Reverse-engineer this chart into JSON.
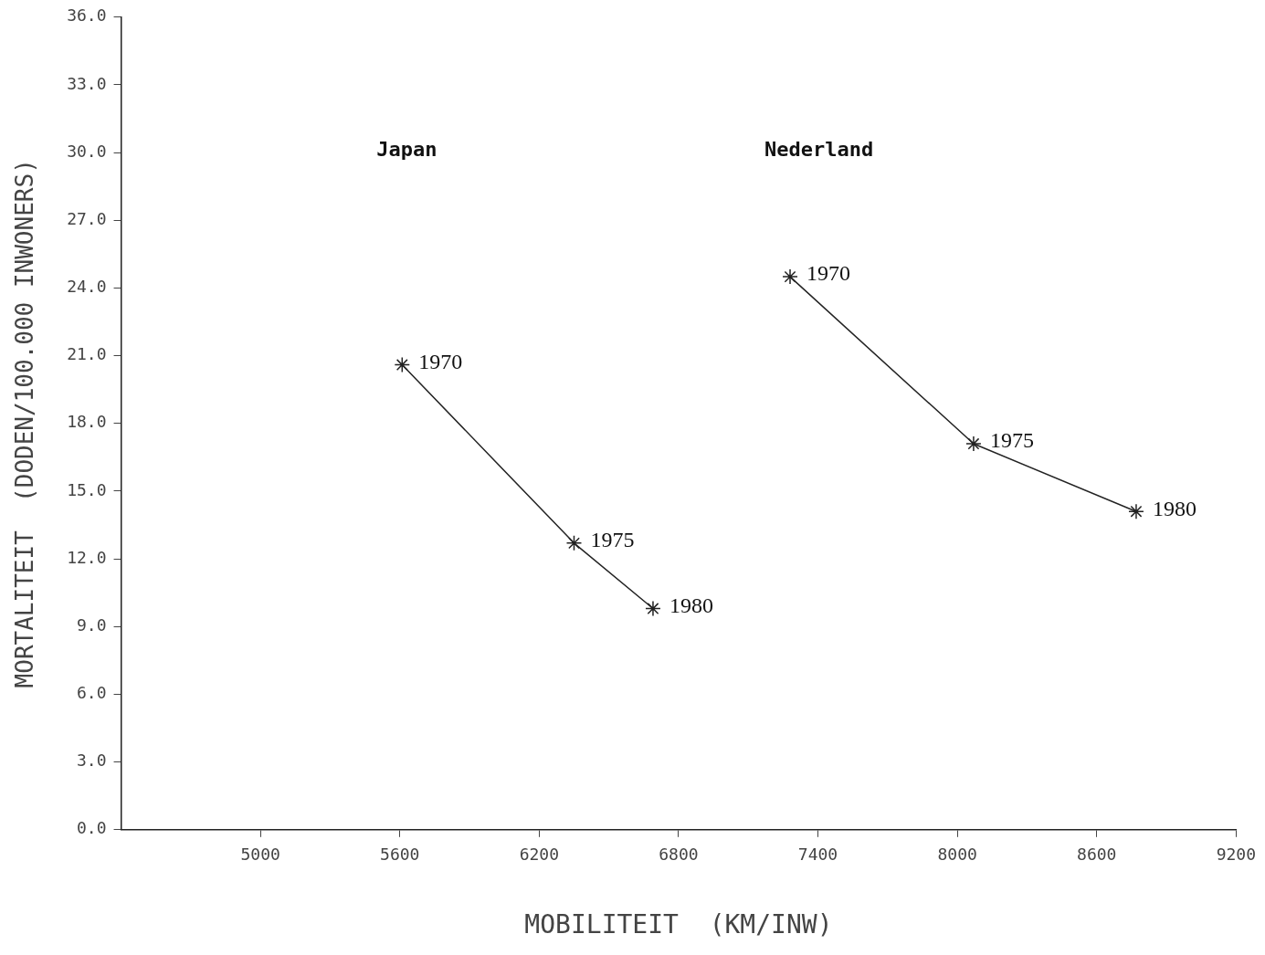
{
  "chart_data": {
    "type": "line",
    "xlabel": "MOBILITEIT  (KM/INW)",
    "ylabel": "MORTALITEIT  (DODEN/100.000 INWONERS)",
    "xlim": [
      4400,
      9200
    ],
    "xticks": [
      5000,
      5600,
      6200,
      6800,
      7400,
      8000,
      8600,
      9200
    ],
    "ylim": [
      0,
      36
    ],
    "yticks": [
      {
        "value": 0,
        "label": "0.0"
      },
      {
        "value": 3,
        "label": "3.0"
      },
      {
        "value": 6,
        "label": "6.0"
      },
      {
        "value": 9,
        "label": "9.0"
      },
      {
        "value": 12,
        "label": "12.0"
      },
      {
        "value": 15,
        "label": "15.0"
      },
      {
        "value": 18,
        "label": "18.0"
      },
      {
        "value": 21,
        "label": "21.0"
      },
      {
        "value": 24,
        "label": "24.0"
      },
      {
        "value": 27,
        "label": "27.0"
      },
      {
        "value": 30,
        "label": "30.0"
      },
      {
        "value": 33,
        "label": "33.0"
      },
      {
        "value": 36,
        "label": "36.0"
      }
    ],
    "grid": false,
    "legend": false,
    "marker": "cross",
    "line_style": "solid",
    "annotations": [
      "Japan",
      "Nederland",
      {
        "text": "1970",
        "x": 5610,
        "y": 20.6
      },
      {
        "text": "1975",
        "x": 6350,
        "y": 12.7
      },
      {
        "text": "1980",
        "x": 6690,
        "y": 9.8
      },
      {
        "text": "1970",
        "x": 7280,
        "y": 24.5
      },
      {
        "text": "1975",
        "x": 8070,
        "y": 17.1
      },
      {
        "text": "1980",
        "x": 8770,
        "y": 14.1
      }
    ],
    "series": [
      {
        "color": "#222222",
        "x": [
          5610,
          6350,
          6690
        ],
        "values": [
          20.6,
          12.7,
          9.8
        ]
      },
      {
        "color": "#222222",
        "x": [
          7280,
          8070,
          8770
        ],
        "values": [
          24.5,
          17.1,
          14.1
        ]
      }
    ]
  }
}
